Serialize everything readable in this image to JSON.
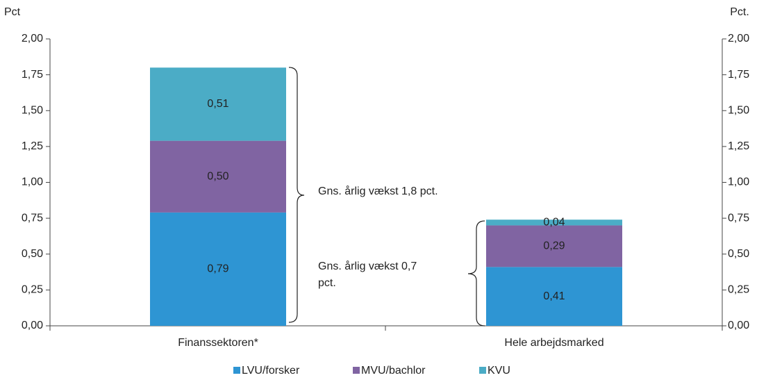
{
  "chart_data": {
    "type": "stacked_bar",
    "y_label": "Pct",
    "y2_label": "Pct.",
    "categories": [
      "Finanssektoren*",
      "Hele arbejdsmarked"
    ],
    "series": [
      {
        "name": "LVU/forsker",
        "color": "#2e95d3",
        "values": [
          0.79,
          0.41
        ],
        "value_labels": [
          "0,79",
          "0,41"
        ]
      },
      {
        "name": "MVU/bachlor",
        "color": "#8064a2",
        "values": [
          0.5,
          0.29
        ],
        "value_labels": [
          "0,50",
          "0,29"
        ]
      },
      {
        "name": "KVU",
        "color": "#4bacc6",
        "values": [
          0.51,
          0.04
        ],
        "value_labels": [
          "0,51",
          "0,04"
        ]
      }
    ],
    "ylim": [
      0,
      2
    ],
    "yticks": [
      {
        "value": 0,
        "label": "0,00"
      },
      {
        "value": 0.25,
        "label": "0,25"
      },
      {
        "value": 0.5,
        "label": "0,50"
      },
      {
        "value": 0.75,
        "label": "0,75"
      },
      {
        "value": 1,
        "label": "1,00"
      },
      {
        "value": 1.25,
        "label": "1,25"
      },
      {
        "value": 1.5,
        "label": "1,50"
      },
      {
        "value": 1.75,
        "label": "1,75"
      },
      {
        "value": 2,
        "label": "2,00"
      }
    ],
    "y2lim": [
      0,
      2
    ],
    "y2ticks": [
      {
        "value": 0,
        "label": "0,00"
      },
      {
        "value": 0.25,
        "label": "0,25"
      },
      {
        "value": 0.5,
        "label": "0,50"
      },
      {
        "value": 0.75,
        "label": "0,75"
      },
      {
        "value": 1,
        "label": "1,00"
      },
      {
        "value": 1.25,
        "label": "1,25"
      },
      {
        "value": 1.5,
        "label": "1,50"
      },
      {
        "value": 1.75,
        "label": "1,75"
      },
      {
        "value": 2,
        "label": "2,00"
      }
    ],
    "annotations": [
      [
        "Gns. årlig vækst 1,8 pct."
      ],
      [
        "Gns. årlig vækst 0,7",
        "pct."
      ]
    ],
    "legend": "bottom"
  }
}
